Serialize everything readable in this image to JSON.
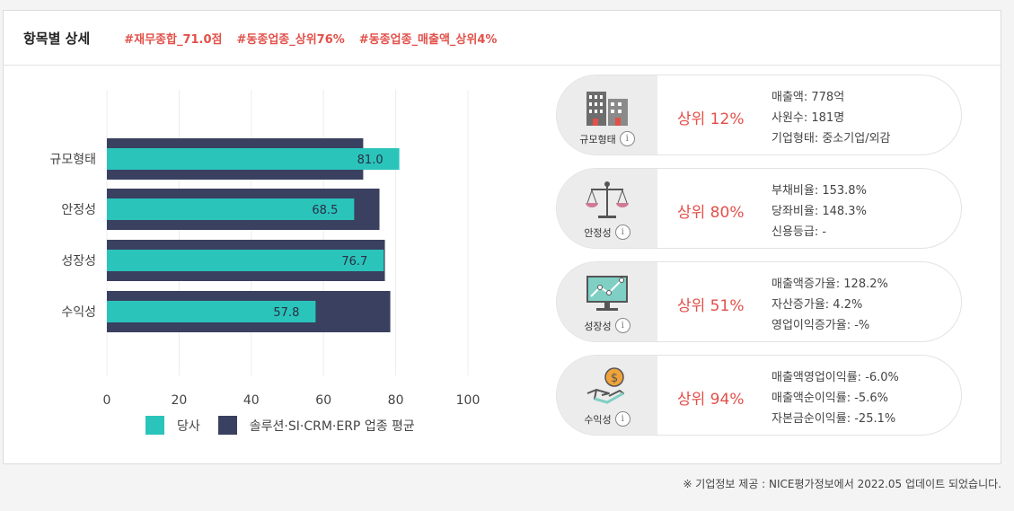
{
  "header": {
    "title": "항목별 상세",
    "tags": [
      "#재무종합_71.0점",
      "#동종업종_상위76%",
      "#동종업종_매출액_상위4%"
    ]
  },
  "chart_data": {
    "type": "bar",
    "orientation": "horizontal",
    "categories": [
      "규모형태",
      "안정성",
      "성장성",
      "수익성"
    ],
    "series": [
      {
        "name": "당사",
        "values": [
          81.0,
          68.5,
          76.7,
          57.8
        ],
        "color": "#2ac4bb"
      },
      {
        "name": "솔루션·SI·CRM·ERP 업종 평균",
        "values": [
          71,
          75.5,
          77,
          78.5
        ],
        "color": "#3a4060"
      }
    ],
    "data_labels": [
      "81.0",
      "68.5",
      "76.7",
      "57.8"
    ],
    "xlim": [
      0,
      100
    ],
    "xticks": [
      "0",
      "20",
      "40",
      "60",
      "80",
      "100"
    ],
    "grid": true,
    "legend_position": "bottom"
  },
  "cards": [
    {
      "label": "규모형태",
      "icon": "building-icon",
      "rank": "상위 12%",
      "lines": [
        "매출액: 778억",
        "사원수: 181명",
        "기업형태: 중소기업/외감"
      ]
    },
    {
      "label": "안정성",
      "icon": "scale-icon",
      "rank": "상위 80%",
      "lines": [
        "부채비율: 153.8%",
        "당좌비율: 148.3%",
        "신용등급: -"
      ]
    },
    {
      "label": "성장성",
      "icon": "monitor-chart-icon",
      "rank": "상위 51%",
      "lines": [
        "매출액증가율: 128.2%",
        "자산증가율: 4.2%",
        "영업이익증가율: -%"
      ]
    },
    {
      "label": "수익성",
      "icon": "coin-hand-icon",
      "rank": "상위 94%",
      "lines": [
        "매출액영업이익률: -6.0%",
        "매출액순이익률: -5.6%",
        "자본금순이익률: -25.1%"
      ]
    }
  ],
  "info_glyph": "i",
  "footer": "※ 기업정보 제공 : NICE평가정보에서 2022.05 업데이트 되었습니다.",
  "colors": {
    "accent": "#e2504a",
    "teal": "#2ac4bb",
    "navy": "#3a4060"
  }
}
